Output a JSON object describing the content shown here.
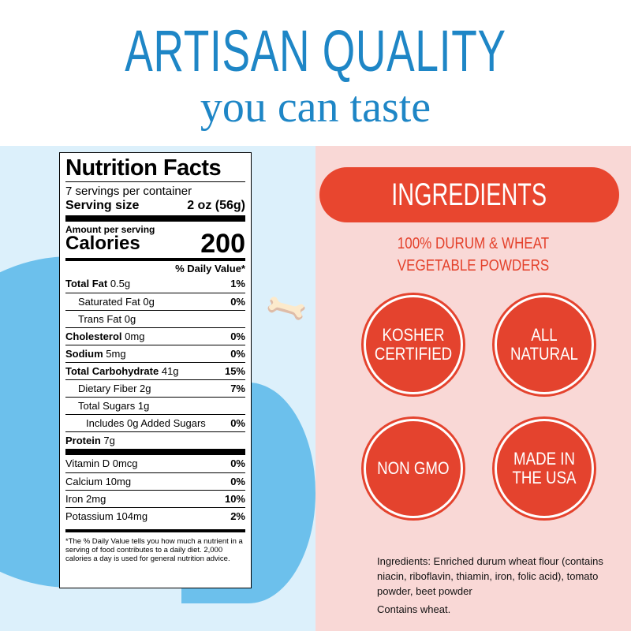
{
  "header": {
    "title": "ARTISAN QUALITY",
    "subtitle": "you can taste"
  },
  "nutrition": {
    "title": "Nutrition Facts",
    "servings": "7 servings per container",
    "serving_size_label": "Serving size",
    "serving_size_value": "2 oz (56g)",
    "amount_per_serving": "Amount per serving",
    "calories_label": "Calories",
    "calories_value": "200",
    "dv_header": "% Daily Value*",
    "rows": [
      {
        "label": "Total Fat",
        "amount": "0.5g",
        "dv": "1%"
      },
      {
        "label": "Saturated Fat 0g",
        "amount": "",
        "dv": "0%"
      },
      {
        "label": "Trans Fat 0g",
        "amount": "",
        "dv": ""
      },
      {
        "label": "Cholesterol",
        "amount": "0mg",
        "dv": "0%"
      },
      {
        "label": "Sodium",
        "amount": "5mg",
        "dv": "0%"
      },
      {
        "label": "Total Carbohydrate",
        "amount": "41g",
        "dv": "15%"
      },
      {
        "label": "Dietary Fiber 2g",
        "amount": "",
        "dv": "7%"
      },
      {
        "label": "Total Sugars 1g",
        "amount": "",
        "dv": ""
      },
      {
        "label": "Includes 0g Added Sugars",
        "amount": "",
        "dv": "0%"
      },
      {
        "label": "Protein",
        "amount": "7g",
        "dv": ""
      }
    ],
    "vitamins": [
      {
        "label": "Vitamin D 0mcg",
        "dv": "0%"
      },
      {
        "label": "Calcium 10mg",
        "dv": "0%"
      },
      {
        "label": "Iron 2mg",
        "dv": "10%"
      },
      {
        "label": "Potassium 104mg",
        "dv": "2%"
      }
    ],
    "footnote": "*The % Daily Value tells you how much a nutrient in a serving of food contributes to a daily diet. 2,000 calories a day is used for general nutrition advice."
  },
  "ingredients": {
    "pill": "INGREDIENTS",
    "line1": "100% DURUM & WHEAT",
    "line2": "VEGETABLE POWDERS",
    "badges": [
      "KOSHER CERTIFIED",
      "ALL NATURAL",
      "NON GMO",
      "MADE IN THE USA"
    ],
    "text": "Ingredients: Enriched durum wheat flour (contains niacin, riboflavin, thiamin, iron, folic acid), tomato powder, beet powder",
    "allergen": "Contains wheat."
  },
  "colors": {
    "blue": "#1e86c6",
    "red": "#e4432e",
    "pink_bg": "#f9d8d6",
    "blue_bg": "#dcf0fb"
  }
}
